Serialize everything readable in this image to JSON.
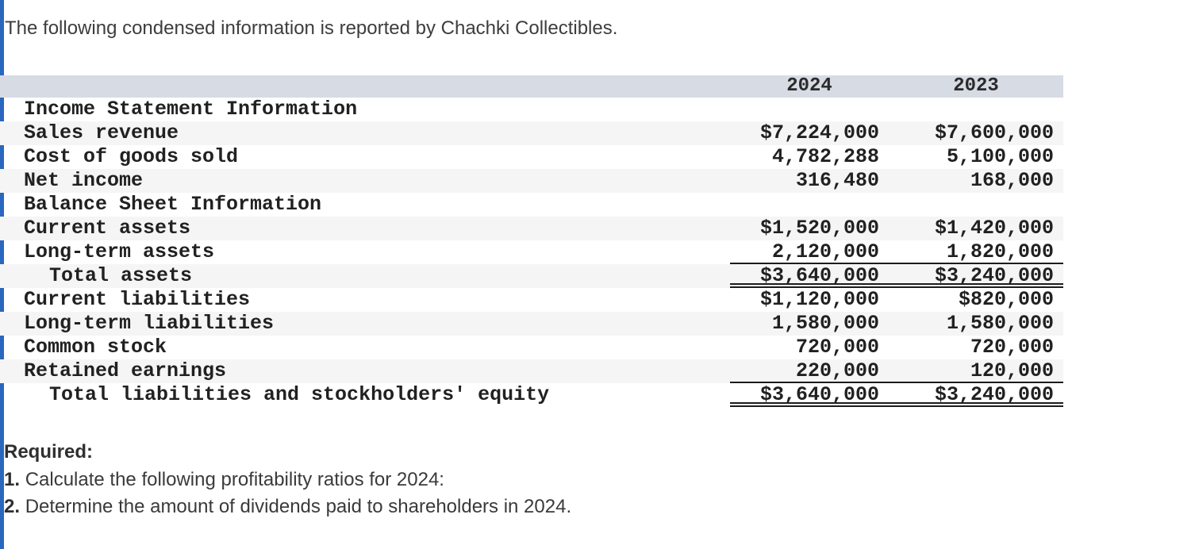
{
  "page": {
    "title": "The following condensed information is reported by Chachki Collectibles.",
    "colors": {
      "accent_blue": "#2a67bf",
      "table_header_bg": "#d6dbe4",
      "row_stripe_bg": "#f5f5f6",
      "rule_color": "#1c1c1c"
    }
  },
  "table": {
    "columns": {
      "y2024": "2024",
      "y2023": "2023"
    },
    "rows": [
      {
        "label": "Income Statement Information",
        "v2024": "",
        "v2023": "",
        "indent": 1,
        "shade": false,
        "rule": "none"
      },
      {
        "label": "Sales revenue",
        "v2024": "$7,224,000",
        "v2023": "$7,600,000",
        "indent": 1,
        "shade": true,
        "rule": "none"
      },
      {
        "label": "Cost of goods sold",
        "v2024": "4,782,288",
        "v2023": "5,100,000",
        "indent": 1,
        "shade": false,
        "rule": "none"
      },
      {
        "label": "Net income",
        "v2024": "316,480",
        "v2023": "168,000",
        "indent": 1,
        "shade": true,
        "rule": "none"
      },
      {
        "label": "Balance Sheet Information",
        "v2024": "",
        "v2023": "",
        "indent": 1,
        "shade": false,
        "rule": "none"
      },
      {
        "label": "Current assets",
        "v2024": "$1,520,000",
        "v2023": "$1,420,000",
        "indent": 1,
        "shade": true,
        "rule": "none"
      },
      {
        "label": "Long-term assets",
        "v2024": "2,120,000",
        "v2023": "1,820,000",
        "indent": 1,
        "shade": false,
        "rule": "single"
      },
      {
        "label": "Total assets",
        "v2024": "$3,640,000",
        "v2023": "$3,240,000",
        "indent": 2,
        "shade": true,
        "rule": "double"
      },
      {
        "label": "Current liabilities",
        "v2024": "$1,120,000",
        "v2023": "$820,000",
        "indent": 1,
        "shade": false,
        "rule": "none"
      },
      {
        "label": "Long-term liabilities",
        "v2024": "1,580,000",
        "v2023": "1,580,000",
        "indent": 1,
        "shade": true,
        "rule": "none"
      },
      {
        "label": "Common stock",
        "v2024": "720,000",
        "v2023": "720,000",
        "indent": 1,
        "shade": false,
        "rule": "none"
      },
      {
        "label": "Retained earnings",
        "v2024": "220,000",
        "v2023": "120,000",
        "indent": 1,
        "shade": true,
        "rule": "single"
      },
      {
        "label": "Total liabilities and stockholders' equity",
        "v2024": "$3,640,000",
        "v2023": "$3,240,000",
        "indent": 2,
        "shade": false,
        "rule": "double"
      }
    ]
  },
  "required": {
    "heading": "Required:",
    "items": [
      {
        "num": "1.",
        "text": "Calculate the following profitability ratios for 2024:"
      },
      {
        "num": "2.",
        "text": "Determine the amount of dividends paid to shareholders in 2024."
      }
    ]
  }
}
